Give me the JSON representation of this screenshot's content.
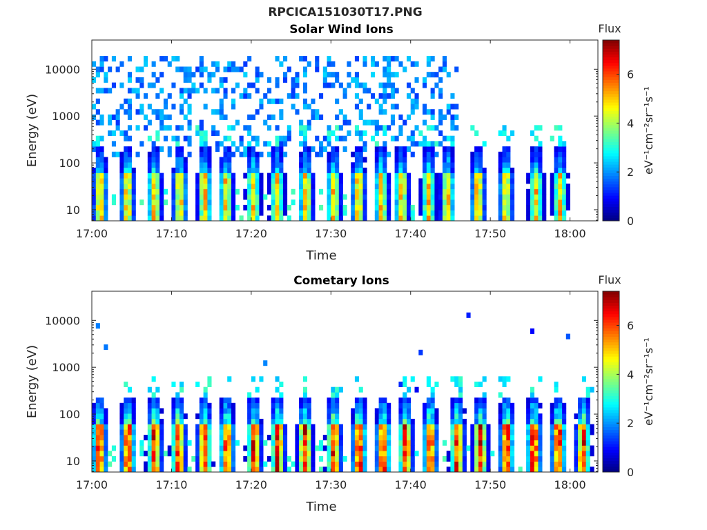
{
  "figure_title": "RPCICA151030T17.PNG",
  "chart_data": [
    {
      "type": "heatmap",
      "title": "Solar Wind Ions",
      "xlabel": "Time",
      "ylabel": "Energy (eV)",
      "x_ticks": [
        "17:00",
        "17:10",
        "17:20",
        "17:30",
        "17:40",
        "17:50",
        "18:00"
      ],
      "x_range_minutes": [
        0,
        63.5
      ],
      "y_scale": "log",
      "y_ticks": [
        10,
        100,
        1000,
        10000
      ],
      "y_tick_labels": [
        "10",
        "100",
        "1000",
        "10000"
      ],
      "ylim": [
        5.8,
        42000
      ],
      "colorbar": {
        "label": "eV⁻¹cm⁻²sr⁻¹s⁻¹",
        "header": "Flux",
        "ticks": [
          0,
          2,
          4,
          6
        ],
        "range": [
          0,
          7.4
        ],
        "colormap": "jet"
      },
      "bursts_minutes": [
        0.8,
        4.2,
        7.6,
        10.8,
        13.9,
        16.6,
        20.0,
        23.0,
        26.6,
        30.1,
        33.2,
        36.1,
        38.6,
        42.0,
        44.4,
        48.2,
        51.7,
        55.5,
        58.5
      ],
      "burst_peak_flux": 5.5,
      "high_energy_background": {
        "t_end_minutes": 45.6,
        "energy_range_eV": [
          150,
          20000
        ],
        "flux": 1.3
      }
    },
    {
      "type": "heatmap",
      "title": "Cometary Ions",
      "xlabel": "Time",
      "ylabel": "Energy (eV)",
      "x_ticks": [
        "17:00",
        "17:10",
        "17:20",
        "17:30",
        "17:40",
        "17:50",
        "18:00"
      ],
      "x_range_minutes": [
        0,
        63.5
      ],
      "y_scale": "log",
      "y_ticks": [
        10,
        100,
        1000,
        10000
      ],
      "y_tick_labels": [
        "10",
        "100",
        "1000",
        "10000"
      ],
      "ylim": [
        5.8,
        42000
      ],
      "colorbar": {
        "label": "eV⁻¹cm⁻²sr⁻¹s⁻¹",
        "header": "Flux",
        "ticks": [
          0,
          2,
          4,
          6
        ],
        "range": [
          0,
          7.4
        ],
        "colormap": "jet"
      },
      "bursts_minutes": [
        0.7,
        4.3,
        7.6,
        10.6,
        13.9,
        16.7,
        20.1,
        23.1,
        26.5,
        30.1,
        33.3,
        36.3,
        39.1,
        42.2,
        45.6,
        48.5,
        51.8,
        55.2,
        58.3,
        61.4
      ],
      "burst_peak_flux": 7.0,
      "high_energy_background": {
        "t_end_minutes": 62.0,
        "energy_range_eV": [
          300,
          15000
        ],
        "flux": 0.7
      }
    }
  ]
}
